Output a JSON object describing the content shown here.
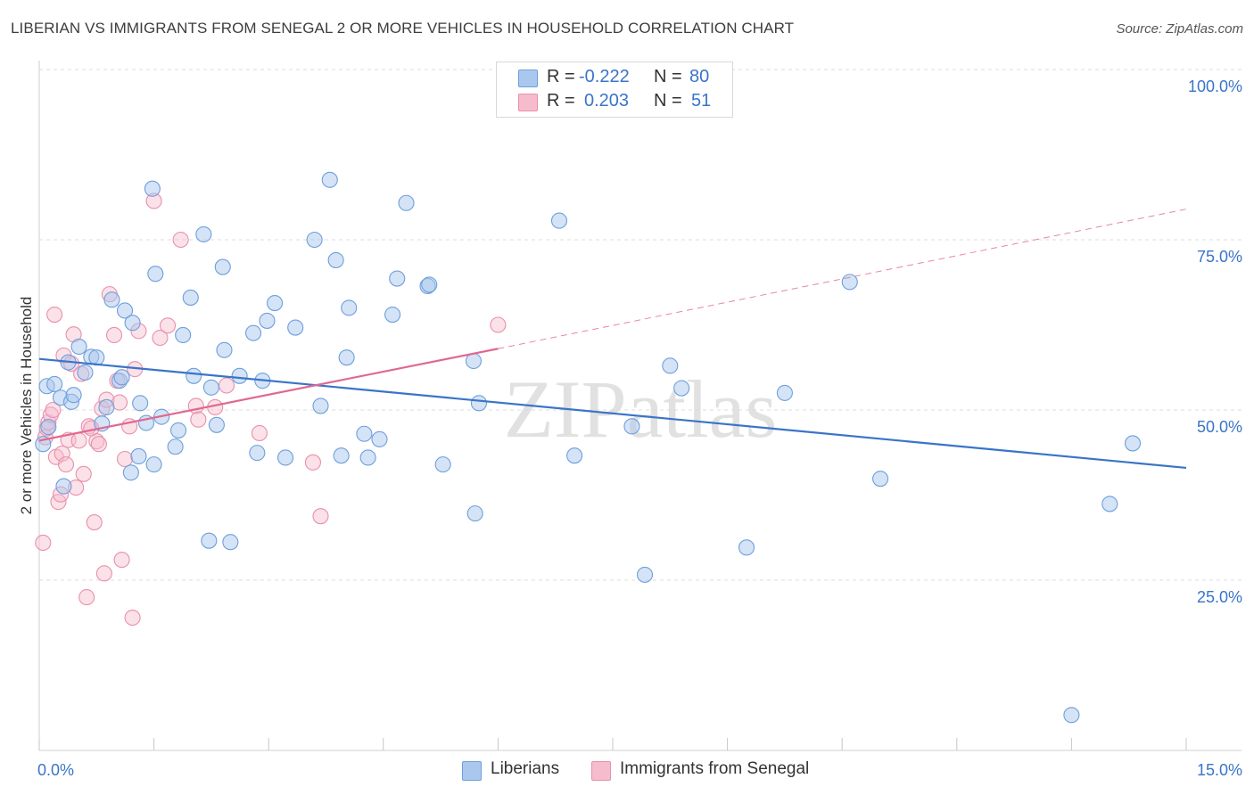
{
  "title": "LIBERIAN VS IMMIGRANTS FROM SENEGAL 2 OR MORE VEHICLES IN HOUSEHOLD CORRELATION CHART",
  "source": "Source: ZipAtlas.com",
  "watermark": "ZIPatlas",
  "legend_top": {
    "series1": {
      "r_label": "R =",
      "r_value": "-0.222",
      "n_label": "N =",
      "n_value": "80"
    },
    "series2": {
      "r_label": "R =",
      "r_value": "0.203",
      "n_label": "N =",
      "n_value": "51"
    }
  },
  "legend_bottom": {
    "series1": "Liberians",
    "series2": "Immigrants from Senegal"
  },
  "colors": {
    "blue_fill": "#aac8ee",
    "blue_stroke": "#6e9fdc",
    "blue_line": "#3a74c8",
    "pink_fill": "#f6bccd",
    "pink_stroke": "#e890ad",
    "pink_line": "#e06892",
    "tick_text": "#3a74c8",
    "grid": "#dcdcdc"
  },
  "chart_data": {
    "type": "scatter",
    "title": "LIBERIAN VS IMMIGRANTS FROM SENEGAL 2 OR MORE VEHICLES IN HOUSEHOLD CORRELATION CHART",
    "xlabel": "",
    "ylabel": "2 or more Vehicles in Household",
    "xlim": [
      0,
      15
    ],
    "ylim": [
      0,
      100
    ],
    "x_tick_labels": [
      "0.0%",
      "15.0%"
    ],
    "y_tick_values": [
      25,
      50,
      75,
      100
    ],
    "y_tick_labels": [
      "25.0%",
      "50.0%",
      "75.0%",
      "100.0%"
    ],
    "grid": "horizontal dashed",
    "legend_placement": "top-center",
    "series": [
      {
        "name": "Liberians",
        "r": -0.222,
        "n": 80,
        "trend": {
          "x": [
            0,
            15
          ],
          "y": [
            57.5,
            41.5
          ],
          "style": "solid"
        },
        "points": [
          [
            0.05,
            45.0
          ],
          [
            0.1,
            53.5
          ],
          [
            0.12,
            47.5
          ],
          [
            0.2,
            53.8
          ],
          [
            0.28,
            51.8
          ],
          [
            0.32,
            38.8
          ],
          [
            0.38,
            57.0
          ],
          [
            0.42,
            51.2
          ],
          [
            0.45,
            52.2
          ],
          [
            0.52,
            59.3
          ],
          [
            0.6,
            55.5
          ],
          [
            0.68,
            57.8
          ],
          [
            0.75,
            57.7
          ],
          [
            0.82,
            48.0
          ],
          [
            0.88,
            50.4
          ],
          [
            0.95,
            66.2
          ],
          [
            1.05,
            54.3
          ],
          [
            1.08,
            54.8
          ],
          [
            1.12,
            64.6
          ],
          [
            1.2,
            40.8
          ],
          [
            1.22,
            62.8
          ],
          [
            1.3,
            43.2
          ],
          [
            1.32,
            51.0
          ],
          [
            1.4,
            48.1
          ],
          [
            1.48,
            82.5
          ],
          [
            1.5,
            42.0
          ],
          [
            1.52,
            70.0
          ],
          [
            1.6,
            49.0
          ],
          [
            1.78,
            44.6
          ],
          [
            1.82,
            47.0
          ],
          [
            1.88,
            61.0
          ],
          [
            1.98,
            66.5
          ],
          [
            2.02,
            55.0
          ],
          [
            2.15,
            75.8
          ],
          [
            2.22,
            30.8
          ],
          [
            2.25,
            53.3
          ],
          [
            2.32,
            47.8
          ],
          [
            2.4,
            71.0
          ],
          [
            2.42,
            58.8
          ],
          [
            2.5,
            30.6
          ],
          [
            2.62,
            55.0
          ],
          [
            2.8,
            61.3
          ],
          [
            2.85,
            43.7
          ],
          [
            2.92,
            54.3
          ],
          [
            2.98,
            63.1
          ],
          [
            3.08,
            65.7
          ],
          [
            3.22,
            43.0
          ],
          [
            3.35,
            62.1
          ],
          [
            3.6,
            75.0
          ],
          [
            3.68,
            50.6
          ],
          [
            3.8,
            83.8
          ],
          [
            3.88,
            72.0
          ],
          [
            3.95,
            43.3
          ],
          [
            4.02,
            57.7
          ],
          [
            4.05,
            65.0
          ],
          [
            4.25,
            46.5
          ],
          [
            4.3,
            43.0
          ],
          [
            4.45,
            45.7
          ],
          [
            4.62,
            64.0
          ],
          [
            4.68,
            69.3
          ],
          [
            4.8,
            80.4
          ],
          [
            5.08,
            68.2
          ],
          [
            5.1,
            68.4
          ],
          [
            5.28,
            42.0
          ],
          [
            5.68,
            57.2
          ],
          [
            5.7,
            34.8
          ],
          [
            5.75,
            51.0
          ],
          [
            6.8,
            77.8
          ],
          [
            7.0,
            43.3
          ],
          [
            7.75,
            47.6
          ],
          [
            7.92,
            25.8
          ],
          [
            8.25,
            56.5
          ],
          [
            8.4,
            53.2
          ],
          [
            9.25,
            29.8
          ],
          [
            9.75,
            52.5
          ],
          [
            10.6,
            68.8
          ],
          [
            11.0,
            39.9
          ],
          [
            13.5,
            5.2
          ],
          [
            14.0,
            36.2
          ],
          [
            14.3,
            45.1
          ]
        ]
      },
      {
        "name": "Immigrants from Senegal",
        "r": 0.203,
        "n": 51,
        "trend": {
          "x": [
            0,
            6
          ],
          "y": [
            45.5,
            59.0
          ],
          "style": "solid",
          "extension": {
            "x": [
              6,
              15
            ],
            "y": [
              59.0,
              79.5
            ],
            "style": "dashed"
          }
        },
        "points": [
          [
            0.05,
            30.5
          ],
          [
            0.08,
            46.0
          ],
          [
            0.1,
            47.3
          ],
          [
            0.12,
            48.2
          ],
          [
            0.15,
            49.3
          ],
          [
            0.18,
            50.0
          ],
          [
            0.22,
            43.1
          ],
          [
            0.25,
            36.5
          ],
          [
            0.28,
            37.6
          ],
          [
            0.3,
            43.6
          ],
          [
            0.32,
            58.0
          ],
          [
            0.35,
            42.0
          ],
          [
            0.38,
            45.6
          ],
          [
            0.42,
            56.8
          ],
          [
            0.45,
            61.1
          ],
          [
            0.48,
            38.6
          ],
          [
            0.52,
            45.5
          ],
          [
            0.55,
            55.3
          ],
          [
            0.58,
            40.6
          ],
          [
            0.62,
            22.5
          ],
          [
            0.65,
            47.6
          ],
          [
            0.68,
            47.3
          ],
          [
            0.72,
            33.5
          ],
          [
            0.75,
            45.4
          ],
          [
            0.78,
            45.0
          ],
          [
            0.82,
            50.2
          ],
          [
            0.85,
            26.0
          ],
          [
            0.88,
            51.5
          ],
          [
            0.92,
            67.0
          ],
          [
            0.98,
            61.0
          ],
          [
            1.02,
            54.3
          ],
          [
            1.05,
            51.1
          ],
          [
            1.08,
            28.0
          ],
          [
            1.12,
            42.8
          ],
          [
            1.18,
            47.6
          ],
          [
            1.22,
            19.5
          ],
          [
            1.25,
            56.0
          ],
          [
            1.3,
            61.6
          ],
          [
            1.5,
            80.7
          ],
          [
            1.58,
            60.6
          ],
          [
            1.68,
            62.4
          ],
          [
            1.85,
            75.0
          ],
          [
            2.05,
            50.6
          ],
          [
            2.08,
            48.6
          ],
          [
            2.3,
            50.4
          ],
          [
            2.45,
            53.6
          ],
          [
            2.88,
            46.6
          ],
          [
            3.58,
            42.3
          ],
          [
            3.68,
            34.4
          ],
          [
            6.0,
            62.5
          ],
          [
            0.2,
            64.0
          ]
        ]
      }
    ]
  }
}
